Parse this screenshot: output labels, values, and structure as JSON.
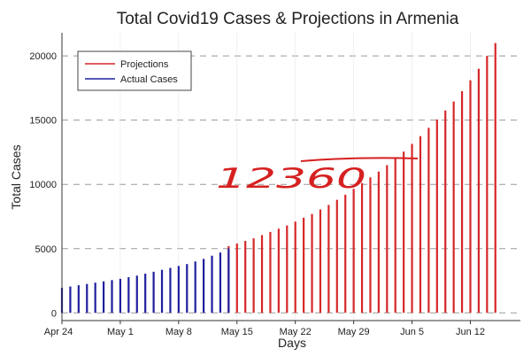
{
  "chart_data": {
    "type": "bar",
    "title": "Total Covid19 Cases & Projections in Armenia",
    "xlabel": "Days",
    "ylabel": "Total Cases",
    "x_start_label": "Apr 24",
    "xticks": [
      {
        "label": "Apr 24",
        "day": 0
      },
      {
        "label": "May 1",
        "day": 7
      },
      {
        "label": "May 8",
        "day": 14
      },
      {
        "label": "May 15",
        "day": 21
      },
      {
        "label": "May 22",
        "day": 28
      },
      {
        "label": "May 29",
        "day": 35
      },
      {
        "label": "Jun 5",
        "day": 42
      },
      {
        "label": "Jun 12",
        "day": 49
      }
    ],
    "yticks": [
      0,
      5000,
      10000,
      15000,
      20000
    ],
    "xlim": [
      0,
      55
    ],
    "ylim": [
      -600,
      21800
    ],
    "grid": true,
    "legend_position": "top-left",
    "series": [
      {
        "name": "Projections",
        "color": "#d62728",
        "start_day": 20,
        "values": [
          5200,
          5400,
          5600,
          5800,
          6050,
          6300,
          6550,
          6800,
          7100,
          7400,
          7700,
          8050,
          8400,
          8800,
          9200,
          9650,
          10100,
          10550,
          11000,
          11500,
          12000,
          12550,
          13150,
          13750,
          14400,
          15050,
          15750,
          16450,
          17250,
          18100,
          19000,
          20000,
          21000
        ]
      },
      {
        "name": "Actual Cases",
        "color": "#1f1f9e",
        "start_day": 0,
        "values": [
          1950,
          2050,
          2150,
          2250,
          2350,
          2450,
          2550,
          2650,
          2780,
          2900,
          3050,
          3200,
          3350,
          3500,
          3650,
          3800,
          4000,
          4200,
          4450,
          4700,
          5000
        ]
      }
    ],
    "annotation": {
      "text": "12360",
      "color": "#d62020"
    }
  }
}
